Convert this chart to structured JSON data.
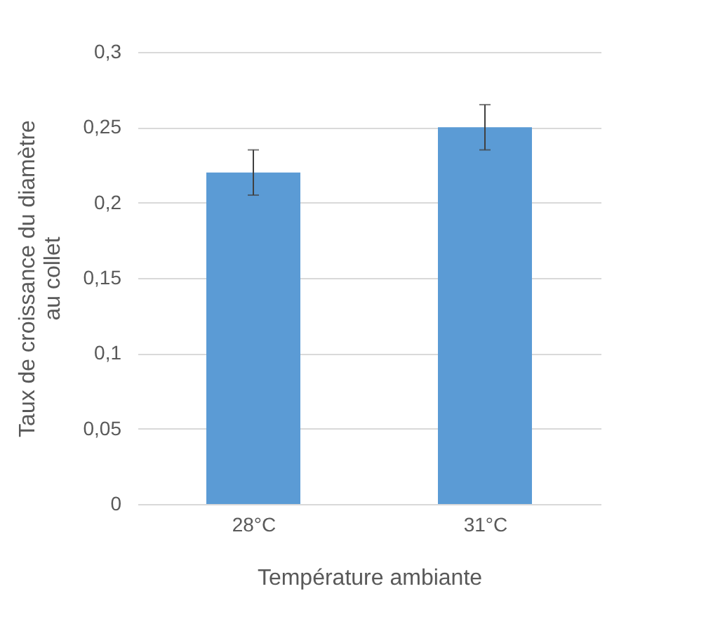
{
  "chart_data": {
    "type": "bar",
    "xlabel": "Température ambiante",
    "ylabel": "Taux de croissance du diamètre au collet",
    "categories": [
      "28°C",
      "31°C"
    ],
    "series": [
      {
        "color": "#5b9bd5",
        "values": [
          0.22,
          0.25
        ],
        "errors": [
          0.015,
          0.015
        ]
      }
    ],
    "ylim": [
      0,
      0.3
    ],
    "yticks": [
      {
        "value": 0,
        "label": "0"
      },
      {
        "value": 0.05,
        "label": "0,05"
      },
      {
        "value": 0.1,
        "label": "0,1"
      },
      {
        "value": 0.15,
        "label": "0,15"
      },
      {
        "value": 0.2,
        "label": "0,2"
      },
      {
        "value": 0.25,
        "label": "0,25"
      },
      {
        "value": 0.3,
        "label": "0,3"
      }
    ],
    "grid": "y",
    "legend": false
  }
}
